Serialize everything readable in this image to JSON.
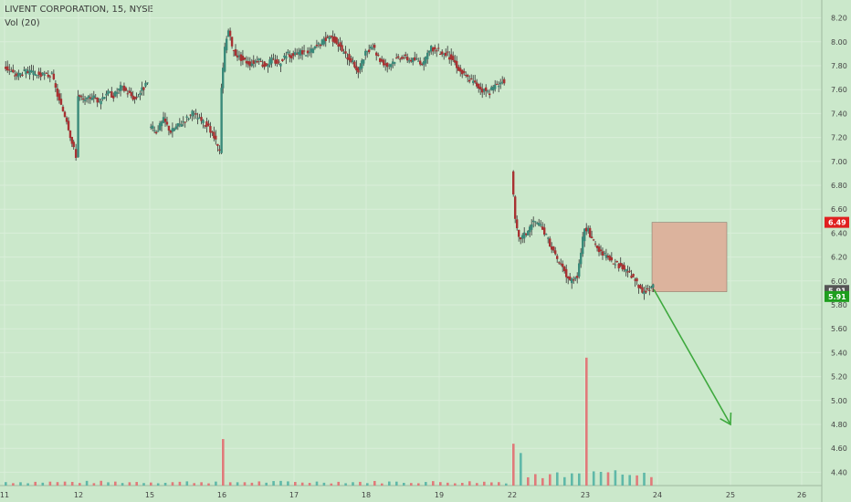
{
  "header": {
    "symbol_line": "LIVENT CORPORATION, 15, NYSE",
    "volume_line": "Vol (20)"
  },
  "colors": {
    "background": "#cbe8cb",
    "grid": "#d9eed9",
    "up": "#3a8a7a",
    "down": "#a83232",
    "wick": "#333333",
    "vol_up": "#5fb8a8",
    "vol_down": "#e07a7a",
    "stop_zone": "#dcb39d",
    "arrow": "#3ea93e",
    "badge_red": "#e02020",
    "badge_gray": "#555555",
    "badge_green": "#1e9e1e"
  },
  "price_badges": [
    {
      "label": "6.49",
      "value": 6.49,
      "color": "#e02020"
    },
    {
      "label": "5.91",
      "value": 5.92,
      "color": "#555555"
    },
    {
      "label": "5.91",
      "value": 5.87,
      "color": "#1e9e1e"
    }
  ],
  "chart_data": {
    "type": "candlestick",
    "title": "LIVENT CORPORATION, 15, NYSE",
    "indicator": "Vol (20)",
    "x_tick_labels": [
      "11",
      "12",
      "15",
      "16",
      "17",
      "18",
      "19",
      "22",
      "23",
      "24",
      "25",
      "26"
    ],
    "y_tick_labels": [
      "4.40",
      "4.60",
      "4.80",
      "5.00",
      "5.20",
      "5.40",
      "5.60",
      "5.80",
      "6.00",
      "6.20",
      "6.40",
      "6.60",
      "6.80",
      "7.00",
      "7.20",
      "7.40",
      "7.60",
      "7.80",
      "8.00",
      "8.20"
    ],
    "ylim": [
      4.33,
      8.28
    ],
    "grid": true,
    "close_path": [
      [
        11.0,
        7.8
      ],
      [
        11.15,
        7.72
      ],
      [
        11.3,
        7.75
      ],
      [
        11.5,
        7.72
      ],
      [
        11.65,
        7.72
      ],
      [
        11.75,
        7.5
      ],
      [
        11.85,
        7.35
      ],
      [
        11.92,
        7.15
      ],
      [
        11.98,
        7.05
      ],
      [
        12.0,
        7.55
      ],
      [
        12.1,
        7.5
      ],
      [
        12.2,
        7.55
      ],
      [
        12.3,
        7.5
      ],
      [
        12.4,
        7.58
      ],
      [
        12.5,
        7.55
      ],
      [
        12.6,
        7.62
      ],
      [
        12.7,
        7.58
      ],
      [
        12.8,
        7.52
      ],
      [
        12.9,
        7.6
      ],
      [
        12.98,
        7.65
      ],
      [
        15.0,
        7.3
      ],
      [
        15.1,
        7.25
      ],
      [
        15.2,
        7.35
      ],
      [
        15.3,
        7.25
      ],
      [
        15.4,
        7.3
      ],
      [
        15.5,
        7.35
      ],
      [
        15.6,
        7.4
      ],
      [
        15.7,
        7.35
      ],
      [
        15.8,
        7.3
      ],
      [
        15.9,
        7.2
      ],
      [
        15.98,
        7.08
      ],
      [
        16.0,
        7.6
      ],
      [
        16.05,
        7.95
      ],
      [
        16.1,
        8.1
      ],
      [
        16.15,
        7.95
      ],
      [
        16.2,
        7.9
      ],
      [
        16.3,
        7.85
      ],
      [
        16.4,
        7.82
      ],
      [
        16.5,
        7.85
      ],
      [
        16.6,
        7.8
      ],
      [
        16.7,
        7.85
      ],
      [
        16.8,
        7.82
      ],
      [
        16.9,
        7.9
      ],
      [
        17.0,
        7.88
      ],
      [
        17.1,
        7.92
      ],
      [
        17.2,
        7.9
      ],
      [
        17.3,
        7.95
      ],
      [
        17.4,
        8.0
      ],
      [
        17.5,
        8.05
      ],
      [
        17.6,
        8.0
      ],
      [
        17.7,
        7.9
      ],
      [
        17.8,
        7.85
      ],
      [
        17.9,
        7.75
      ],
      [
        18.0,
        7.9
      ],
      [
        18.1,
        7.95
      ],
      [
        18.2,
        7.85
      ],
      [
        18.3,
        7.8
      ],
      [
        18.4,
        7.85
      ],
      [
        18.5,
        7.88
      ],
      [
        18.6,
        7.85
      ],
      [
        18.7,
        7.85
      ],
      [
        18.8,
        7.82
      ],
      [
        18.9,
        7.95
      ],
      [
        19.0,
        7.92
      ],
      [
        19.1,
        7.9
      ],
      [
        19.2,
        7.85
      ],
      [
        19.3,
        7.75
      ],
      [
        19.4,
        7.7
      ],
      [
        19.5,
        7.65
      ],
      [
        19.6,
        7.6
      ],
      [
        19.7,
        7.58
      ],
      [
        19.8,
        7.65
      ],
      [
        19.9,
        7.67
      ],
      [
        22.0,
        6.9
      ],
      [
        22.05,
        6.5
      ],
      [
        22.1,
        6.35
      ],
      [
        22.2,
        6.4
      ],
      [
        22.3,
        6.5
      ],
      [
        22.4,
        6.45
      ],
      [
        22.5,
        6.35
      ],
      [
        22.6,
        6.2
      ],
      [
        22.7,
        6.1
      ],
      [
        22.8,
        6.0
      ],
      [
        22.9,
        6.05
      ],
      [
        23.0,
        6.45
      ],
      [
        23.05,
        6.42
      ],
      [
        23.1,
        6.35
      ],
      [
        23.2,
        6.25
      ],
      [
        23.3,
        6.2
      ],
      [
        23.4,
        6.15
      ],
      [
        23.5,
        6.12
      ],
      [
        23.6,
        6.08
      ],
      [
        23.7,
        6.0
      ],
      [
        23.8,
        5.9
      ],
      [
        23.95,
        5.95
      ]
    ],
    "volume": {
      "baseline_bars": 0.015,
      "spikes": [
        {
          "x": 16.0,
          "value": 0.2
        },
        {
          "x": 22.0,
          "value": 0.18
        },
        {
          "x": 22.1,
          "value": 0.14
        },
        {
          "x": 22.95,
          "value": 0.15
        },
        {
          "x": 23.0,
          "value": 0.55
        },
        {
          "x": 23.95,
          "value": 0.13
        }
      ]
    },
    "stop_zone": {
      "x_start": 23.95,
      "x_end": 24.95,
      "y_low": 5.91,
      "y_high": 6.49
    },
    "projection_arrow": {
      "from": [
        23.95,
        5.93
      ],
      "to": [
        25.0,
        4.8
      ]
    }
  }
}
